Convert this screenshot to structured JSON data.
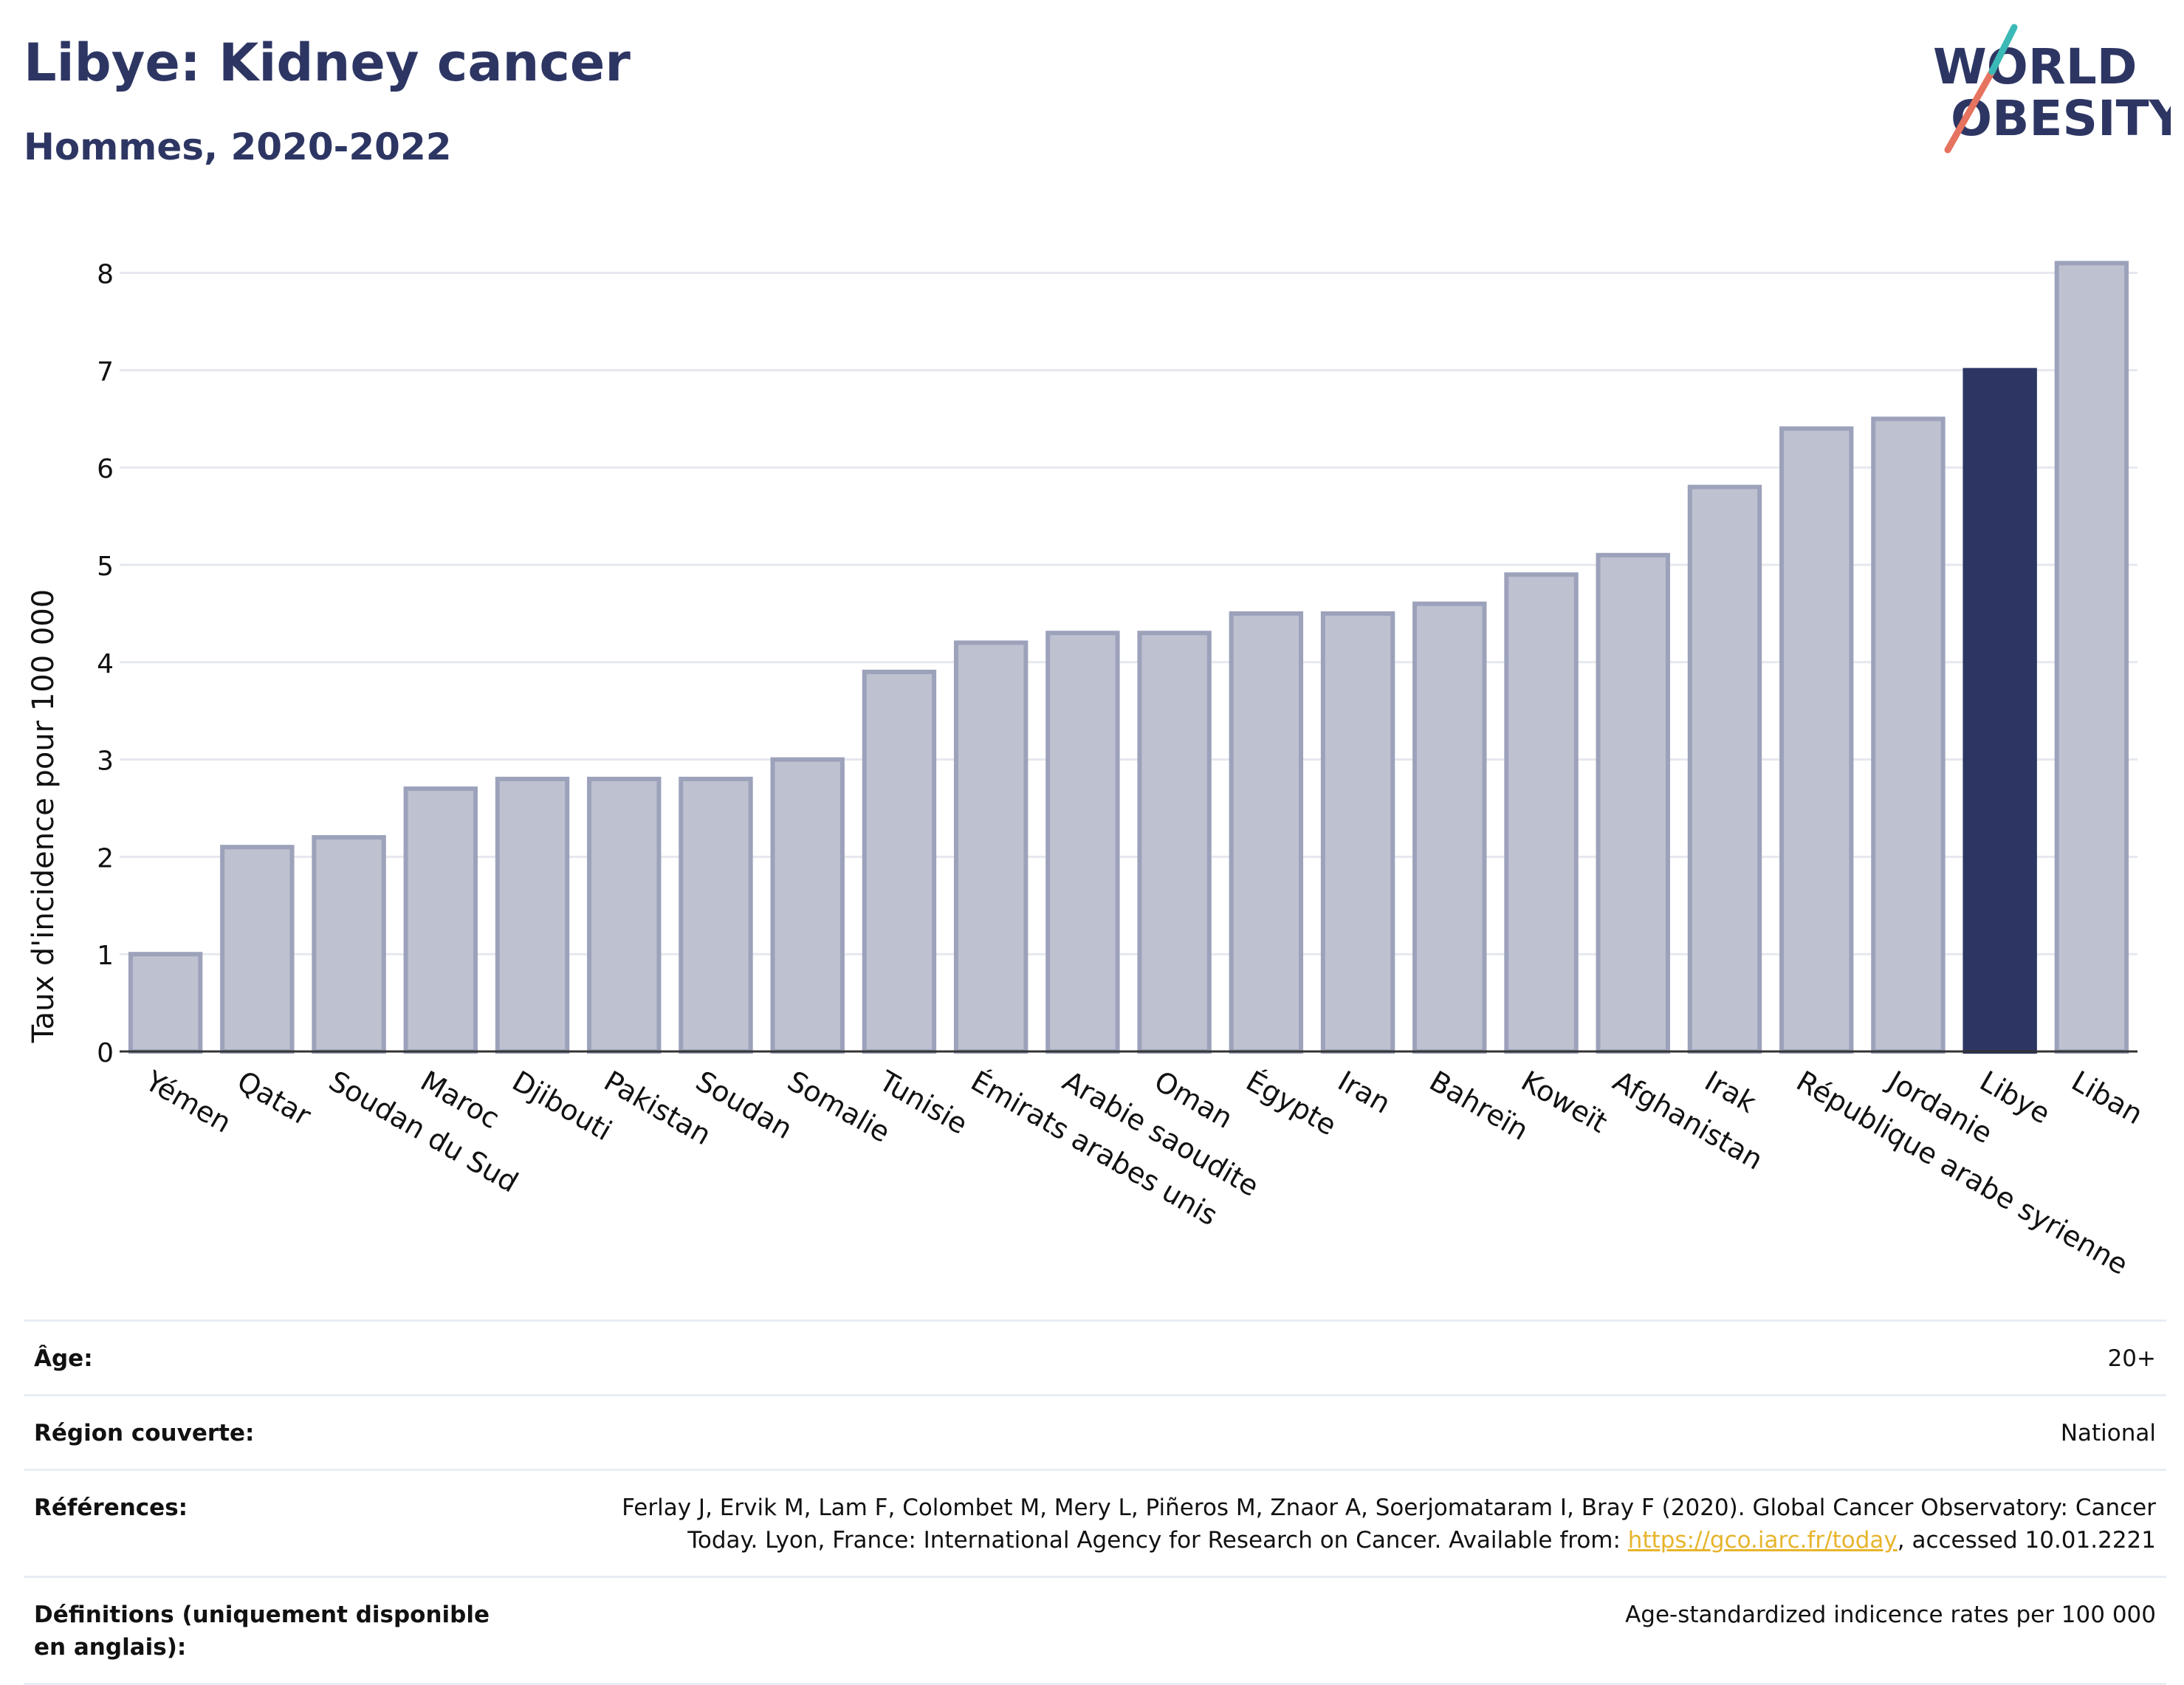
{
  "header": {
    "title": "Libye: Kidney cancer",
    "subtitle": "Hommes, 2020-2022"
  },
  "logo": {
    "line1": "WORLD",
    "line2": "OBESITY",
    "colors": {
      "text": "#2d3663",
      "slash_red": "#e5735f",
      "slash_teal": "#3bb9b6"
    }
  },
  "colors": {
    "bar": "#bec1d0",
    "bar_stroke": "#9da2bb",
    "highlight": "#2d3663",
    "grid": "#e6e8ef",
    "axis": "#333333"
  },
  "chart_data": {
    "type": "bar",
    "title": "Libye: Kidney cancer",
    "subtitle": "Hommes, 2020-2022",
    "xlabel": "",
    "ylabel": "Taux d'incidence pour 100 000",
    "ylim": [
      0,
      8.3
    ],
    "yticks": [
      0,
      1,
      2,
      3,
      4,
      5,
      6,
      7,
      8
    ],
    "grid": true,
    "highlight": "Libye",
    "categories": [
      "Yémen",
      "Qatar",
      "Soudan du Sud",
      "Maroc",
      "Djibouti",
      "Pakistan",
      "Soudan",
      "Somalie",
      "Tunisie",
      "Émirats arabes unis",
      "Arabie saoudite",
      "Oman",
      "Égypte",
      "Iran",
      "Bahreïn",
      "Koweït",
      "Afghanistan",
      "Irak",
      "République arabe syrienne",
      "Jordanie",
      "Libye",
      "Liban"
    ],
    "values": [
      1.0,
      2.1,
      2.2,
      2.7,
      2.8,
      2.8,
      2.8,
      3.0,
      3.9,
      4.2,
      4.3,
      4.3,
      4.5,
      4.5,
      4.6,
      4.9,
      5.1,
      5.8,
      6.4,
      6.5,
      7.0,
      8.1
    ]
  },
  "meta": {
    "age": {
      "label": "Âge:",
      "value": "20+"
    },
    "region": {
      "label": "Région couverte:",
      "value": "National"
    },
    "references": {
      "label": "Références:",
      "text_before": "Ferlay J, Ervik M, Lam F, Colombet M, Mery L, Piñeros M, Znaor A, Soerjomataram I, Bray F (2020). Global Cancer Observatory: Cancer Today. Lyon, France: International Agency for Research on Cancer. Available from: ",
      "link": "https://gco.iarc.fr/today",
      "text_after": ", accessed 10.01.2221"
    },
    "definitions": {
      "label": "Définitions (uniquement disponible en anglais):",
      "value": "Age-standardized indicence rates per 100 000"
    }
  }
}
